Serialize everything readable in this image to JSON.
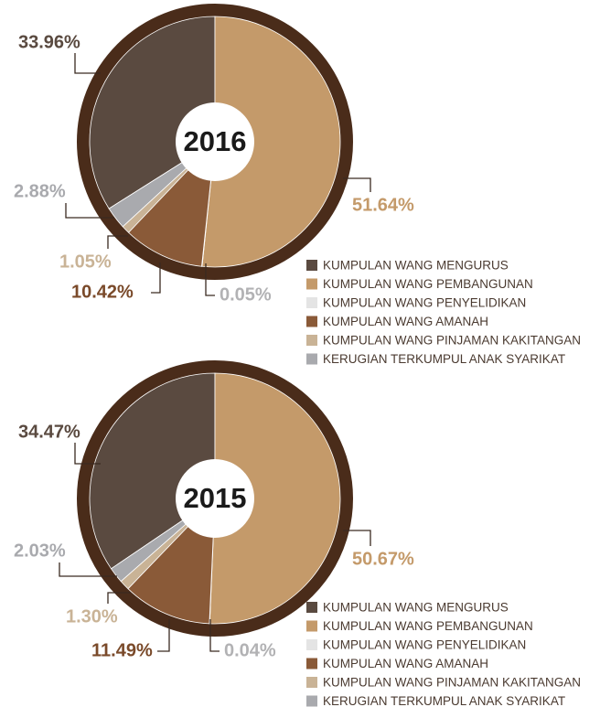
{
  "chart_data": [
    {
      "type": "pie",
      "title": "2016",
      "categories": [
        "KUMPULAN WANG MENGURUS",
        "KUMPULAN WANG PEMBANGUNAN",
        "KUMPULAN WANG PENYELIDIKAN",
        "KUMPULAN WANG AMANAH",
        "KUMPULAN WANG PINJAMAN KAKITANGAN",
        "KERUGIAN TERKUMPUL ANAK SYARIKAT"
      ],
      "values": [
        33.96,
        51.64,
        0.05,
        10.42,
        1.05,
        2.88
      ],
      "value_labels": [
        "33.96%",
        "51.64%",
        "0.05%",
        "10.42%",
        "1.05%",
        "2.88%"
      ],
      "colors": [
        "#5a4a40",
        "#c49a6a",
        "#e4e4e4",
        "#8a5a38",
        "#c9b396",
        "#a9aaae"
      ],
      "label_colors": [
        "#5a4a40",
        "#c49a6a",
        "#b2b2b4",
        "#7a4a2a",
        "#c9b396",
        "#a9aaae"
      ]
    },
    {
      "type": "pie",
      "title": "2015",
      "categories": [
        "KUMPULAN WANG MENGURUS",
        "KUMPULAN WANG PEMBANGUNAN",
        "KUMPULAN WANG PENYELIDIKAN",
        "KUMPULAN WANG AMANAH",
        "KUMPULAN WANG PINJAMAN KAKITANGAN",
        "KERUGIAN TERKUMPUL ANAK SYARIKAT"
      ],
      "values": [
        34.47,
        50.67,
        0.04,
        11.49,
        1.3,
        2.03
      ],
      "value_labels": [
        "34.47%",
        "50.67%",
        "0.04%",
        "11.49%",
        "1.30%",
        "2.03%"
      ],
      "colors": [
        "#5a4a40",
        "#c49a6a",
        "#e4e4e4",
        "#8a5a38",
        "#c9b396",
        "#a9aaae"
      ],
      "label_colors": [
        "#5a4a40",
        "#c49a6a",
        "#b2b2b4",
        "#7a4a2a",
        "#c9b396",
        "#a9aaae"
      ]
    }
  ]
}
